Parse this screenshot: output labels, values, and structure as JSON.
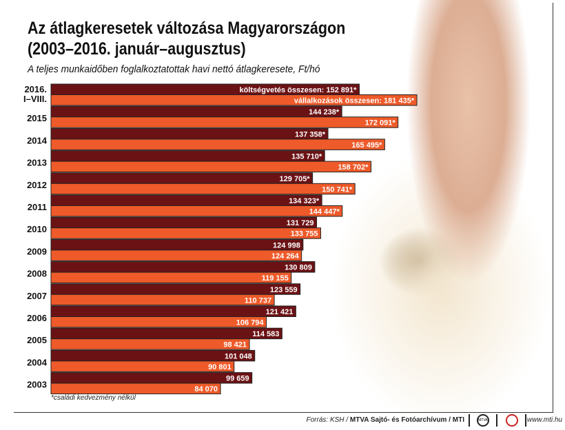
{
  "chart_data": {
    "type": "bar",
    "orientation": "horizontal",
    "title": "Az átlagkeresetek változása Magyarországon (2003–2016. január–augusztus)",
    "title_lines": [
      "Az átlagkeresetek változása Magyarországon",
      "(2003–2016. január–augusztus)"
    ],
    "subtitle": "A teljes munkaidőben foglalkoztatottak havi nettó átlagkeresete, Ft/hó",
    "categories": [
      [
        "2016.",
        "I–VIII."
      ],
      [
        "2015"
      ],
      [
        "2014"
      ],
      [
        "2013"
      ],
      [
        "2012"
      ],
      [
        "2011"
      ],
      [
        "2010"
      ],
      [
        "2009"
      ],
      [
        "2008"
      ],
      [
        "2007"
      ],
      [
        "2006"
      ],
      [
        "2005"
      ],
      [
        "2004"
      ],
      [
        "2003"
      ]
    ],
    "series": [
      {
        "color": "#6b1215",
        "values": [
          152891,
          144238,
          137358,
          135710,
          129705,
          134323,
          131729,
          124998,
          130809,
          123559,
          121421,
          114583,
          101048,
          99659
        ],
        "labels": [
          "költségvetés összesen: 152 891*",
          "144 238*",
          "137 358*",
          "135 710*",
          "129 705*",
          "134 323*",
          "131 729",
          "124 998",
          "130 809",
          "123 559",
          "121 421",
          "114 583",
          "101 048",
          "99 659"
        ]
      },
      {
        "color": "#ee5a29",
        "values": [
          181435,
          172091,
          165495,
          158702,
          150741,
          144447,
          133755,
          124264,
          119155,
          110737,
          106794,
          98421,
          90801,
          84070
        ],
        "labels": [
          "vállalkozások összesen: 181 435*",
          "172 091*",
          "165 495*",
          "158 702*",
          "150 741*",
          "144 447*",
          "133 755",
          "124 264",
          "119 155",
          "110 737",
          "106 794",
          "98 421",
          "90 801",
          "84 070"
        ]
      }
    ],
    "xlim": [
      0,
      181435
    ],
    "grid": false,
    "legend": "none"
  },
  "footnote": "*családi kedvezmény nélkül",
  "source_prefix": "Forrás: KSH / ",
  "source_bold": "MTVA Sajtó- és Fotóarchívum / MTI",
  "logo_text": "MTVA",
  "url": "www.mti.hu"
}
